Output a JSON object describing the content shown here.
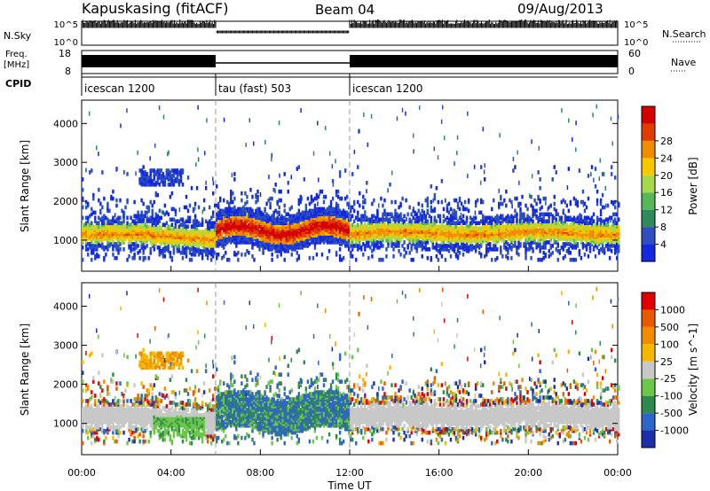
{
  "header": {
    "station": "Kapuskasing (fitACF)",
    "beam": "Beam 04",
    "date": "09/Aug/2013"
  },
  "strips": {
    "nsky_label": "N.Sky",
    "nsky_ticks": [
      "10^5",
      "10^0"
    ],
    "nsearch_label": "N.Search",
    "nsearch_ticks": [
      "10^5",
      "10^0"
    ],
    "freq_label_1": "Freq.",
    "freq_label_2": "[MHz]",
    "freq_ticks": [
      "18",
      "8"
    ],
    "nave_label": "Nave",
    "nave_ticks": [
      "60",
      "0"
    ],
    "cpid_label": "CPID",
    "cpid_segments": [
      {
        "label": "icescan 1200",
        "start_hour": 0,
        "end_hour": 6
      },
      {
        "label": "tau (fast) 503",
        "start_hour": 6,
        "end_hour": 12
      },
      {
        "label": "icescan 1200",
        "start_hour": 12,
        "end_hour": 24
      }
    ]
  },
  "chart_data": [
    {
      "type": "heatmap",
      "name": "power",
      "ylabel": "Slant Range [km]",
      "yticks": [
        "1000",
        "2000",
        "3000",
        "4000"
      ],
      "ylim": [
        200,
        4600
      ],
      "xlim": [
        0,
        24
      ],
      "colorbar_label": "Power [dB]",
      "colorbar_ticks": [
        "4",
        "8",
        "12",
        "16",
        "20",
        "24",
        "28"
      ],
      "colorbar_colors": [
        "#1428e0",
        "#2d4fbf",
        "#2e8a5c",
        "#57b657",
        "#a8d84c",
        "#f5c800",
        "#f08c00",
        "#e03c00",
        "#d40000"
      ]
    },
    {
      "type": "heatmap",
      "name": "velocity",
      "ylabel": "Slant Range [km]",
      "yticks": [
        "1000",
        "2000",
        "3000",
        "4000"
      ],
      "ylim": [
        200,
        4600
      ],
      "xlim": [
        0,
        24
      ],
      "xlabel": "Time UT",
      "xticks": [
        "00:00",
        "04:00",
        "08:00",
        "12:00",
        "16:00",
        "20:00",
        "00:00"
      ],
      "colorbar_label": "Velocity [m s^-1]",
      "colorbar_ticks": [
        "1000",
        "500",
        "100",
        "25",
        "-25",
        "-100",
        "-500",
        "-1000"
      ],
      "colorbar_colors": [
        "#1a2fa8",
        "#2f64c8",
        "#2e8a4c",
        "#6cc64a",
        "#c8c8c8",
        "#f5b800",
        "#f08c00",
        "#e85a00",
        "#e00000"
      ]
    }
  ]
}
